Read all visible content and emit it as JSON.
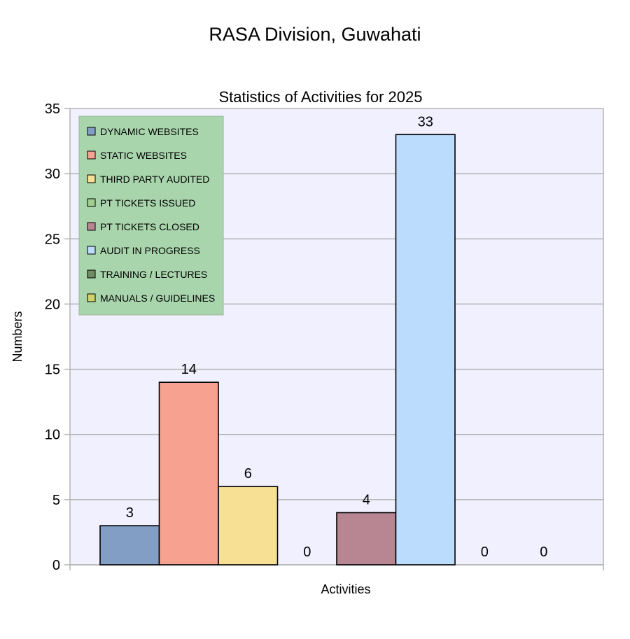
{
  "page_title": "RASA Division, Guwahati",
  "chart_data": {
    "type": "bar",
    "title": "Statistics of Activities for 2025",
    "xlabel": "Activities",
    "ylabel": "Numbers",
    "ylim": [
      0,
      35
    ],
    "yticks": [
      0,
      5,
      10,
      15,
      20,
      25,
      30,
      35
    ],
    "grid": true,
    "legend_position": "top-left",
    "series": [
      {
        "name": "DYNAMIC WEBSITES",
        "value": 3,
        "color": "#839ec5"
      },
      {
        "name": "STATIC WEBSITES",
        "value": 14,
        "color": "#f7a291"
      },
      {
        "name": "THIRD PARTY AUDITED",
        "value": 6,
        "color": "#f7df93"
      },
      {
        "name": "PT TICKETS ISSUED",
        "value": 0,
        "color": "#9fd08f"
      },
      {
        "name": "PT TICKETS CLOSED",
        "value": 4,
        "color": "#b88592"
      },
      {
        "name": "AUDIT IN PROGRESS",
        "value": 33,
        "color": "#bcdcfd"
      },
      {
        "name": "TRAINING / LECTURES",
        "value": 0,
        "color": "#6f8c62"
      },
      {
        "name": "MANUALS / GUIDELINES",
        "value": 0,
        "color": "#cfd46a"
      }
    ],
    "colors": {
      "plot_background": "#f0f0ff",
      "legend_background": "#a9d5ad",
      "grid": "#b3b3b3"
    }
  }
}
